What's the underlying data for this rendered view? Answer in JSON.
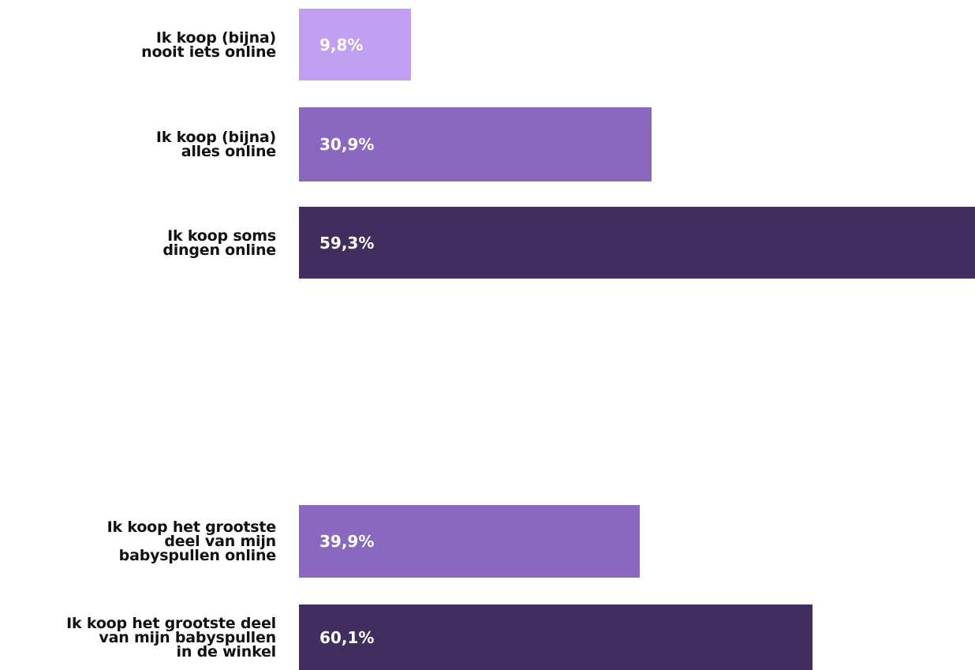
{
  "colors": {
    "light": "#c19ff0",
    "medium": "#8b68bf",
    "dark": "#422e5e"
  },
  "chart_data": [
    {
      "type": "bar",
      "orientation": "horizontal",
      "categories": [
        "Ik koop (bijna)\nnooit iets online",
        "Ik koop (bijna)\nalles online",
        "Ik koop soms\ndingen online"
      ],
      "values": [
        9.8,
        30.9,
        59.3
      ],
      "value_labels": [
        "9,8%",
        "30,9%",
        "59,3%"
      ],
      "colors": [
        "#c19ff0",
        "#8b68bf",
        "#422e5e"
      ],
      "xlim": [
        0,
        59.3
      ]
    },
    {
      "type": "bar",
      "orientation": "horizontal",
      "categories": [
        "Ik koop het grootste\ndeel van mijn\nbabyspullen online",
        "Ik koop het grootste deel\nvan mijn babyspullen\nin de winkel"
      ],
      "values": [
        39.9,
        60.1
      ],
      "value_labels": [
        "39,9%",
        "60,1%"
      ],
      "colors": [
        "#8b68bf",
        "#422e5e"
      ],
      "xlim": [
        0,
        79.1
      ]
    }
  ]
}
